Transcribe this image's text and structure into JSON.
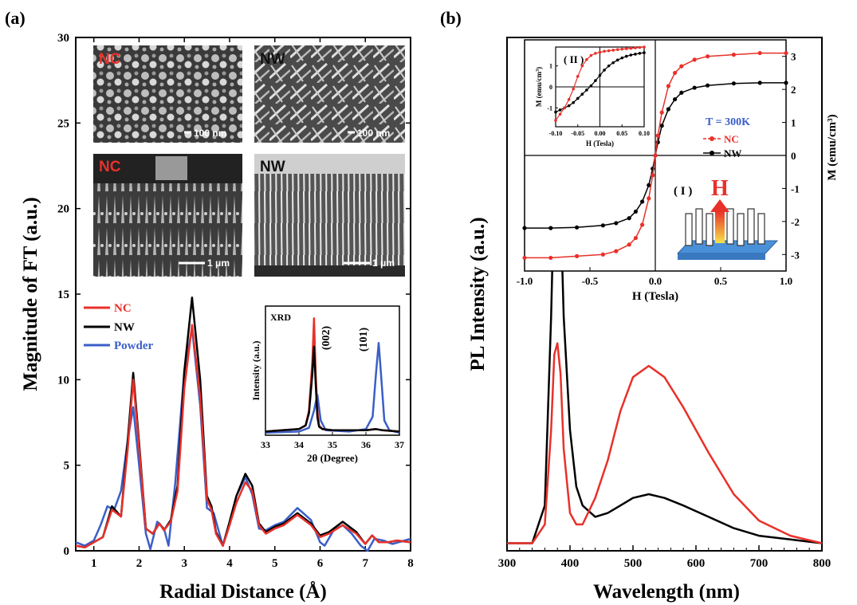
{
  "panel_a": {
    "label": "(a)",
    "sem": {
      "nc_top": {
        "label": "NC",
        "scale": "100 nm"
      },
      "nw_top": {
        "label": "NW",
        "scale": "100 nm"
      },
      "nc_side": {
        "label": "NC",
        "scale": "1 μm"
      },
      "nw_side": {
        "label": "NW",
        "scale": "1 μm"
      }
    },
    "inset_title": "XRD"
  },
  "panel_b": {
    "label": "(b)",
    "inset_mag": {
      "label_I": "( I )",
      "label_II": "( II )",
      "temp_text": "T = 300K",
      "h_label": "H",
      "legend_nc": "NC",
      "legend_nw": "NW",
      "small_ylabel": "M (emu/cm",
      "small_ylabel_sup": "3",
      "small_ylabel_end": ")",
      "small_xlabel": "H (Tesla)"
    }
  },
  "colors": {
    "NC": "#e8312a",
    "NW": "#000000",
    "Powder": "#3a5fc8",
    "temp": "#3a5fc8",
    "substrate": "#4a90d9",
    "arrow": "#e8312a"
  },
  "chart_data": [
    {
      "type": "line",
      "xlabel": "Radial Distance (Å)",
      "ylabel": "Magnitude of FT (a.u.)",
      "xlim": [
        0.6,
        8
      ],
      "ylim": [
        0,
        30
      ],
      "xticks": [
        1,
        2,
        3,
        4,
        5,
        6,
        7,
        8
      ],
      "yticks": [
        0,
        5,
        10,
        15,
        20,
        25,
        30
      ],
      "legend": "middle-left",
      "series": [
        {
          "name": "NC",
          "x": [
            0.6,
            0.8,
            1.0,
            1.2,
            1.4,
            1.6,
            1.75,
            1.87,
            2.0,
            2.15,
            2.3,
            2.45,
            2.55,
            2.7,
            2.85,
            3.0,
            3.17,
            3.35,
            3.5,
            3.6,
            3.7,
            3.85,
            4.0,
            4.15,
            4.35,
            4.5,
            4.65,
            4.8,
            5.0,
            5.2,
            5.5,
            5.8,
            6.0,
            6.2,
            6.5,
            6.8,
            7.0,
            7.15,
            7.3,
            7.5,
            7.7,
            8.0
          ],
          "y": [
            0.3,
            0.2,
            0.5,
            0.8,
            2.4,
            2.0,
            6.0,
            10.0,
            6.0,
            1.3,
            1.0,
            1.6,
            1.2,
            1.7,
            3.5,
            9.5,
            13.2,
            9.0,
            3.0,
            2.4,
            1.0,
            0.3,
            1.5,
            2.8,
            4.0,
            3.5,
            1.5,
            1.0,
            1.3,
            1.5,
            2.1,
            1.5,
            0.8,
            1.0,
            1.5,
            1.0,
            0.4,
            0.9,
            0.5,
            0.5,
            0.6,
            0.5
          ]
        },
        {
          "name": "NW",
          "x": [
            0.6,
            0.8,
            1.0,
            1.2,
            1.4,
            1.6,
            1.75,
            1.87,
            2.0,
            2.15,
            2.3,
            2.45,
            2.55,
            2.7,
            2.85,
            3.0,
            3.17,
            3.35,
            3.5,
            3.6,
            3.7,
            3.85,
            4.0,
            4.15,
            4.35,
            4.5,
            4.65,
            4.8,
            5.0,
            5.2,
            5.5,
            5.8,
            6.0,
            6.2,
            6.5,
            6.8,
            7.0,
            7.15,
            7.3,
            7.5,
            7.7,
            8.0
          ],
          "y": [
            0.3,
            0.2,
            0.5,
            0.8,
            2.6,
            2.0,
            6.5,
            10.4,
            6.3,
            1.3,
            1.0,
            1.6,
            1.2,
            1.8,
            3.8,
            10.5,
            14.8,
            10.0,
            3.2,
            2.6,
            1.1,
            0.3,
            1.7,
            3.2,
            4.5,
            3.8,
            1.6,
            1.1,
            1.4,
            1.6,
            2.2,
            1.6,
            0.9,
            1.1,
            1.7,
            1.1,
            0.4,
            0.9,
            0.5,
            0.5,
            0.6,
            0.5
          ]
        },
        {
          "name": "Powder",
          "x": [
            0.6,
            0.8,
            1.0,
            1.15,
            1.3,
            1.45,
            1.6,
            1.75,
            1.87,
            2.0,
            2.15,
            2.25,
            2.4,
            2.55,
            2.65,
            2.8,
            3.0,
            3.17,
            3.35,
            3.5,
            3.65,
            3.85,
            4.0,
            4.15,
            4.35,
            4.5,
            4.65,
            4.8,
            5.0,
            5.2,
            5.5,
            5.8,
            6.0,
            6.1,
            6.3,
            6.5,
            6.7,
            6.9,
            7.05,
            7.2,
            7.4,
            7.6,
            8.0
          ],
          "y": [
            0.5,
            0.3,
            0.6,
            1.5,
            2.6,
            2.4,
            3.5,
            6.5,
            8.4,
            5.0,
            1.0,
            0.1,
            1.7,
            1.3,
            0.3,
            4.0,
            10.5,
            13.0,
            8.5,
            2.5,
            2.2,
            0.3,
            1.5,
            3.2,
            4.3,
            3.3,
            1.3,
            1.2,
            1.5,
            1.7,
            2.5,
            1.8,
            0.5,
            0.3,
            1.2,
            1.5,
            1.0,
            0.3,
            0.0,
            0.7,
            0.6,
            0.4,
            0.7
          ]
        }
      ]
    },
    {
      "type": "line",
      "xlabel": "2θ (Degree)",
      "ylabel": "Intensity (a.u.)",
      "xlim": [
        33,
        37
      ],
      "xticks": [
        33,
        34,
        35,
        36,
        37
      ],
      "annotations": [
        "(002)",
        "(101)"
      ],
      "series": [
        {
          "name": "NC",
          "x": [
            33.0,
            33.5,
            34.0,
            34.2,
            34.3,
            34.4,
            34.45,
            34.5,
            34.55,
            34.6,
            34.7,
            35.0,
            35.5,
            36.0,
            36.3,
            36.5,
            37.0
          ],
          "y": [
            0.03,
            0.04,
            0.05,
            0.08,
            0.2,
            0.6,
            0.95,
            0.5,
            0.2,
            0.08,
            0.05,
            0.04,
            0.04,
            0.04,
            0.05,
            0.04,
            0.03
          ]
        },
        {
          "name": "NW",
          "x": [
            33.0,
            33.5,
            34.0,
            34.2,
            34.3,
            34.4,
            34.45,
            34.5,
            34.55,
            34.6,
            34.7,
            35.0,
            35.5,
            36.0,
            36.3,
            36.5,
            37.0
          ],
          "y": [
            0.03,
            0.04,
            0.05,
            0.08,
            0.18,
            0.5,
            0.72,
            0.42,
            0.15,
            0.07,
            0.05,
            0.04,
            0.04,
            0.04,
            0.05,
            0.04,
            0.03
          ]
        },
        {
          "name": "Powder",
          "x": [
            33.0,
            34.0,
            34.3,
            34.45,
            34.55,
            34.65,
            34.8,
            35.5,
            36.0,
            36.2,
            36.3,
            36.38,
            36.45,
            36.55,
            36.7,
            37.0
          ],
          "y": [
            0.02,
            0.03,
            0.06,
            0.2,
            0.33,
            0.12,
            0.04,
            0.03,
            0.05,
            0.15,
            0.5,
            0.75,
            0.5,
            0.12,
            0.04,
            0.02
          ]
        }
      ]
    },
    {
      "type": "line",
      "xlabel": "Wavelength (nm)",
      "ylabel": "PL Intensity (a.u.)",
      "xlim": [
        300,
        800
      ],
      "xticks": [
        300,
        400,
        500,
        600,
        700,
        800
      ],
      "series": [
        {
          "name": "NW",
          "x": [
            300,
            340,
            360,
            370,
            375,
            380,
            385,
            390,
            400,
            410,
            420,
            440,
            460,
            480,
            500,
            525,
            550,
            580,
            620,
            660,
            700,
            750,
            800
          ],
          "y": [
            0.0,
            0.0,
            0.1,
            0.6,
            0.95,
            1.0,
            0.9,
            0.6,
            0.3,
            0.15,
            0.1,
            0.07,
            0.08,
            0.1,
            0.12,
            0.13,
            0.12,
            0.1,
            0.07,
            0.04,
            0.02,
            0.01,
            0.0
          ]
        },
        {
          "name": "NC",
          "x": [
            300,
            340,
            360,
            370,
            375,
            380,
            385,
            390,
            400,
            410,
            420,
            440,
            460,
            480,
            500,
            525,
            550,
            580,
            620,
            660,
            700,
            750,
            800
          ],
          "y": [
            0.0,
            0.0,
            0.05,
            0.3,
            0.5,
            0.53,
            0.45,
            0.25,
            0.08,
            0.05,
            0.05,
            0.12,
            0.22,
            0.35,
            0.44,
            0.47,
            0.44,
            0.36,
            0.24,
            0.13,
            0.06,
            0.02,
            0.0
          ]
        }
      ]
    },
    {
      "type": "line",
      "xlabel": "H (Tesla)",
      "ylabel": "M (emu/cm³)",
      "xlim": [
        -1.0,
        1.0
      ],
      "ylim": [
        -3.5,
        3.5
      ],
      "xticks": [
        -1.0,
        -0.5,
        0.0,
        0.5,
        1.0
      ],
      "yticks": [
        -3,
        -2,
        -1,
        0,
        1,
        2,
        3
      ],
      "series": [
        {
          "name": "NC",
          "x": [
            -1.0,
            -0.8,
            -0.6,
            -0.4,
            -0.3,
            -0.2,
            -0.15,
            -0.1,
            -0.05,
            -0.02,
            0.0,
            0.02,
            0.05,
            0.1,
            0.15,
            0.2,
            0.3,
            0.4,
            0.6,
            0.8,
            1.0
          ],
          "y": [
            -3.1,
            -3.1,
            -3.05,
            -3.0,
            -2.9,
            -2.7,
            -2.5,
            -2.1,
            -1.3,
            -0.6,
            0.0,
            0.6,
            1.3,
            2.1,
            2.5,
            2.7,
            2.9,
            3.0,
            3.05,
            3.1,
            3.1
          ]
        },
        {
          "name": "NW",
          "x": [
            -1.0,
            -0.8,
            -0.6,
            -0.4,
            -0.3,
            -0.2,
            -0.15,
            -0.1,
            -0.05,
            -0.02,
            0.0,
            0.02,
            0.05,
            0.1,
            0.15,
            0.2,
            0.3,
            0.4,
            0.6,
            0.8,
            1.0
          ],
          "y": [
            -2.2,
            -2.2,
            -2.18,
            -2.12,
            -2.05,
            -1.9,
            -1.7,
            -1.4,
            -0.9,
            -0.4,
            0.0,
            0.4,
            0.9,
            1.4,
            1.7,
            1.9,
            2.05,
            2.12,
            2.18,
            2.2,
            2.2
          ]
        }
      ]
    },
    {
      "type": "line",
      "xlabel": "H (Tesla)",
      "ylabel": "M (emu/cm³)",
      "xlim": [
        -0.1,
        0.1
      ],
      "ylim": [
        -1.9,
        1.9
      ],
      "xticks": [
        -0.1,
        -0.05,
        0.0,
        0.05,
        0.1
      ],
      "yticks": [
        -1,
        0,
        1
      ],
      "series": [
        {
          "name": "NC",
          "x": [
            -0.1,
            -0.09,
            -0.08,
            -0.07,
            -0.06,
            -0.05,
            -0.04,
            -0.03,
            -0.02,
            -0.01,
            0.0,
            0.01,
            0.02,
            0.03,
            0.04,
            0.05,
            0.06,
            0.07,
            0.08,
            0.09,
            0.1
          ],
          "y": [
            -1.6,
            -1.3,
            -1.0,
            -0.6,
            -0.1,
            0.5,
            1.0,
            1.3,
            1.5,
            1.6,
            1.65,
            1.7,
            1.72,
            1.75,
            1.78,
            1.8,
            1.82,
            1.84,
            1.86,
            1.88,
            1.9
          ]
        },
        {
          "name": "NW",
          "x": [
            -0.1,
            -0.09,
            -0.08,
            -0.07,
            -0.06,
            -0.05,
            -0.04,
            -0.03,
            -0.02,
            -0.01,
            0.0,
            0.01,
            0.02,
            0.03,
            0.04,
            0.05,
            0.06,
            0.07,
            0.08,
            0.09,
            0.1
          ],
          "y": [
            -1.2,
            -1.1,
            -1.0,
            -0.9,
            -0.75,
            -0.55,
            -0.35,
            -0.15,
            0.05,
            0.3,
            0.55,
            0.8,
            1.0,
            1.15,
            1.28,
            1.38,
            1.46,
            1.52,
            1.56,
            1.6,
            1.63
          ]
        }
      ]
    }
  ]
}
